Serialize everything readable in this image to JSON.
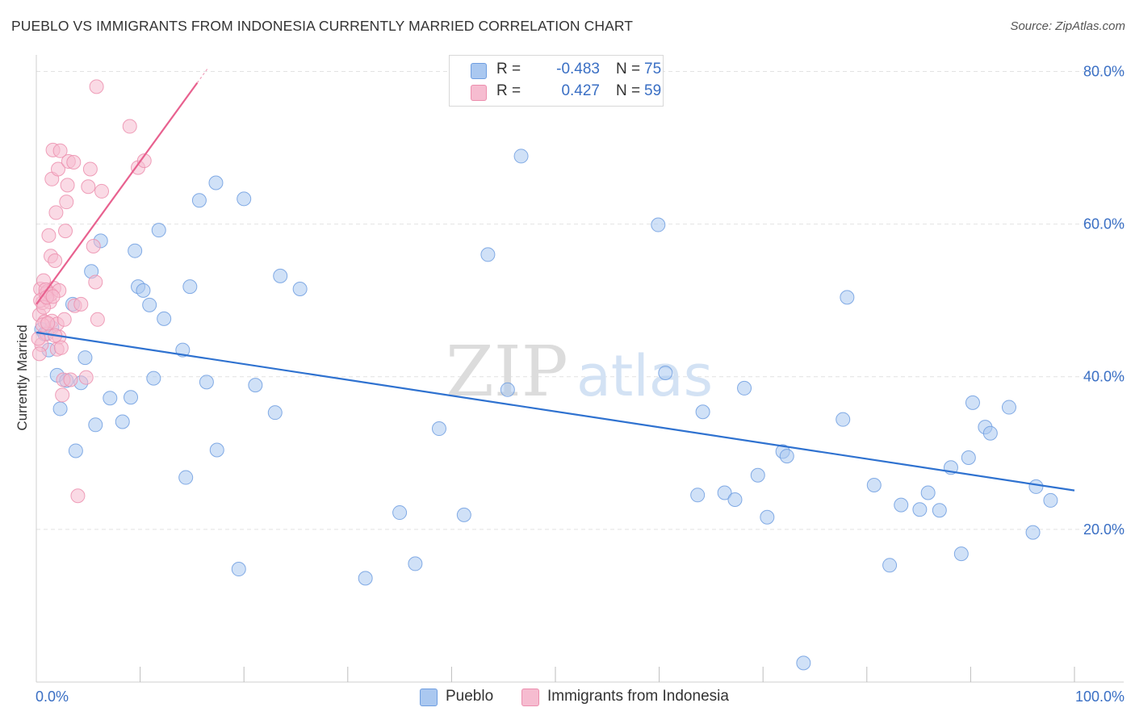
{
  "title": "PUEBLO VS IMMIGRANTS FROM INDONESIA CURRENTLY MARRIED CORRELATION CHART",
  "source": "Source: ZipAtlas.com",
  "watermark": {
    "part1": "ZIP",
    "part2": "atlas"
  },
  "legend": {
    "r_label": "R =",
    "n_label": "N =",
    "series": [
      {
        "name": "Pueblo",
        "r": "-0.483",
        "n": "75"
      },
      {
        "name": "Immigrants from Indonesia",
        "r": "0.427",
        "n": "59"
      }
    ]
  },
  "colors": {
    "blue_fill": "#aac8f0",
    "blue_stroke": "#6f9ee0",
    "blue_line": "#2f72d0",
    "pink_fill": "#f6bcd0",
    "pink_stroke": "#ec8fae",
    "pink_line": "#e8618f",
    "grid": "#e2e2e2",
    "tick_text": "#3a6fc4"
  },
  "chart_data": {
    "type": "scatter",
    "title": "PUEBLO VS IMMIGRANTS FROM INDONESIA CURRENTLY MARRIED CORRELATION CHART",
    "xlabel": "",
    "ylabel": "Currently Married",
    "xlim": [
      0,
      100
    ],
    "ylim": [
      0,
      81
    ],
    "x_tick_labels": [
      "0.0%",
      "100.0%"
    ],
    "y_ticks": [
      20,
      40,
      60,
      80
    ],
    "y_tick_labels": [
      "20.0%",
      "40.0%",
      "60.0%",
      "80.0%"
    ],
    "grid": true,
    "series": [
      {
        "name": "Pueblo",
        "color": "blue",
        "trend": {
          "x": [
            0,
            100
          ],
          "y": [
            45.8,
            25.1
          ]
        },
        "points": [
          [
            0.5,
            46.2
          ],
          [
            1.2,
            43.5
          ],
          [
            2.0,
            40.2
          ],
          [
            2.3,
            35.8
          ],
          [
            2.9,
            39.5
          ],
          [
            3.5,
            49.5
          ],
          [
            3.8,
            30.3
          ],
          [
            4.3,
            39.2
          ],
          [
            4.7,
            42.5
          ],
          [
            5.3,
            53.8
          ],
          [
            5.7,
            33.7
          ],
          [
            6.2,
            57.8
          ],
          [
            7.1,
            37.2
          ],
          [
            8.3,
            34.1
          ],
          [
            9.1,
            37.3
          ],
          [
            9.5,
            56.5
          ],
          [
            9.8,
            51.8
          ],
          [
            10.3,
            51.3
          ],
          [
            10.9,
            49.4
          ],
          [
            11.3,
            39.8
          ],
          [
            11.8,
            59.2
          ],
          [
            12.3,
            47.6
          ],
          [
            14.1,
            43.5
          ],
          [
            14.4,
            26.8
          ],
          [
            14.8,
            51.8
          ],
          [
            15.7,
            63.1
          ],
          [
            16.4,
            39.3
          ],
          [
            17.3,
            65.4
          ],
          [
            17.4,
            30.4
          ],
          [
            19.5,
            14.8
          ],
          [
            20.0,
            63.3
          ],
          [
            21.1,
            38.9
          ],
          [
            23.0,
            35.3
          ],
          [
            23.5,
            53.2
          ],
          [
            25.4,
            51.5
          ],
          [
            31.7,
            13.6
          ],
          [
            35.0,
            22.2
          ],
          [
            36.5,
            15.5
          ],
          [
            38.8,
            33.2
          ],
          [
            41.2,
            21.9
          ],
          [
            43.5,
            56.0
          ],
          [
            45.4,
            38.3
          ],
          [
            46.7,
            68.9
          ],
          [
            59.9,
            59.9
          ],
          [
            60.6,
            40.5
          ],
          [
            63.7,
            24.5
          ],
          [
            64.2,
            35.4
          ],
          [
            66.3,
            24.8
          ],
          [
            67.3,
            23.9
          ],
          [
            68.2,
            38.5
          ],
          [
            69.5,
            27.1
          ],
          [
            70.4,
            21.6
          ],
          [
            71.9,
            30.2
          ],
          [
            72.3,
            29.6
          ],
          [
            73.9,
            2.5
          ],
          [
            77.7,
            34.4
          ],
          [
            78.1,
            50.4
          ],
          [
            80.7,
            25.8
          ],
          [
            82.2,
            15.3
          ],
          [
            83.3,
            23.2
          ],
          [
            85.1,
            22.6
          ],
          [
            85.9,
            24.8
          ],
          [
            87.0,
            22.5
          ],
          [
            88.1,
            28.1
          ],
          [
            89.1,
            16.8
          ],
          [
            89.8,
            29.4
          ],
          [
            90.2,
            36.6
          ],
          [
            91.4,
            33.4
          ],
          [
            91.9,
            32.6
          ],
          [
            93.7,
            36.0
          ],
          [
            96.0,
            19.6
          ],
          [
            96.3,
            25.6
          ],
          [
            97.7,
            23.8
          ],
          [
            0.8,
            45.6
          ],
          [
            1.5,
            46.4
          ]
        ]
      },
      {
        "name": "Immigrants from Indonesia",
        "color": "pink",
        "trend": {
          "x": [
            0,
            15.5
          ],
          "y": [
            49.5,
            78.5
          ]
        },
        "points": [
          [
            0.3,
            48.1
          ],
          [
            0.4,
            51.5
          ],
          [
            0.5,
            44.2
          ],
          [
            0.6,
            49.7
          ],
          [
            0.7,
            52.6
          ],
          [
            0.8,
            47.2
          ],
          [
            0.9,
            50.9
          ],
          [
            1.0,
            45.6
          ],
          [
            1.1,
            51.2
          ],
          [
            1.2,
            58.5
          ],
          [
            1.3,
            49.8
          ],
          [
            1.4,
            55.8
          ],
          [
            1.5,
            47.3
          ],
          [
            1.5,
            65.9
          ],
          [
            1.6,
            69.7
          ],
          [
            1.7,
            51.6
          ],
          [
            1.8,
            55.2
          ],
          [
            1.9,
            61.5
          ],
          [
            2.0,
            43.6
          ],
          [
            2.0,
            46.9
          ],
          [
            2.1,
            67.2
          ],
          [
            2.2,
            45.2
          ],
          [
            2.3,
            69.6
          ],
          [
            2.4,
            43.8
          ],
          [
            2.5,
            37.6
          ],
          [
            2.6,
            39.6
          ],
          [
            2.7,
            47.5
          ],
          [
            2.8,
            59.1
          ],
          [
            2.9,
            62.9
          ],
          [
            3.0,
            65.1
          ],
          [
            3.1,
            68.2
          ],
          [
            3.3,
            39.6
          ],
          [
            3.6,
            68.1
          ],
          [
            3.7,
            49.3
          ],
          [
            4.0,
            24.4
          ],
          [
            4.3,
            49.5
          ],
          [
            4.8,
            39.9
          ],
          [
            5.0,
            64.9
          ],
          [
            5.2,
            67.2
          ],
          [
            5.5,
            57.1
          ],
          [
            5.7,
            52.4
          ],
          [
            5.8,
            78.0
          ],
          [
            5.9,
            47.5
          ],
          [
            6.3,
            64.3
          ],
          [
            9.0,
            72.8
          ],
          [
            9.8,
            67.4
          ],
          [
            10.4,
            68.3
          ],
          [
            0.4,
            50.0
          ],
          [
            0.6,
            46.8
          ],
          [
            0.9,
            51.4
          ],
          [
            1.1,
            47.0
          ],
          [
            1.4,
            50.8
          ],
          [
            0.2,
            45.0
          ],
          [
            0.3,
            43.0
          ],
          [
            1.8,
            45.4
          ],
          [
            2.2,
            51.3
          ],
          [
            0.7,
            49.1
          ],
          [
            1.0,
            50.4
          ],
          [
            1.6,
            50.5
          ]
        ]
      }
    ]
  }
}
